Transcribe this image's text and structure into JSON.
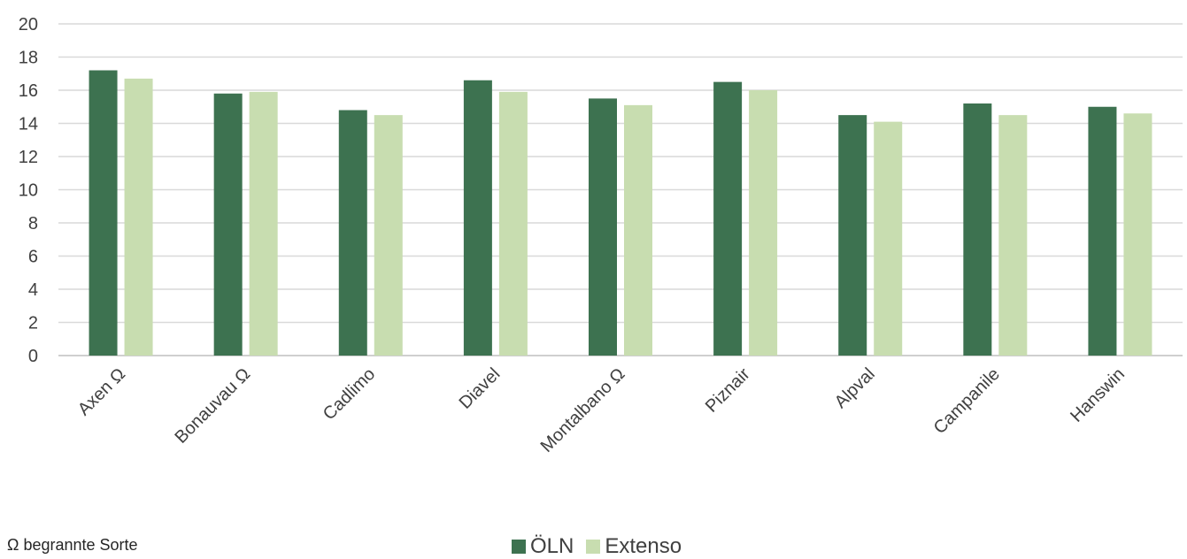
{
  "chart_data": {
    "type": "bar",
    "categories": [
      "Axen Ω",
      "Bonauvau Ω",
      "Cadlimo",
      "Diavel",
      "Montalbano Ω",
      "Piznair",
      "Alpval",
      "Campanile",
      "Hanswin"
    ],
    "series": [
      {
        "name": "ÖLN",
        "color": "#3d7250",
        "values": [
          17.2,
          15.8,
          14.8,
          16.6,
          15.5,
          16.5,
          14.5,
          15.2,
          15.0
        ]
      },
      {
        "name": "Extenso",
        "color": "#c8ddb0",
        "values": [
          16.7,
          15.9,
          14.5,
          15.9,
          15.1,
          16.0,
          14.1,
          14.5,
          14.6
        ]
      }
    ],
    "yticks": [
      "0",
      "2",
      "4",
      "6",
      "8",
      "10",
      "12",
      "14",
      "16",
      "18",
      "20"
    ],
    "ylim": [
      0,
      20
    ],
    "grid": true,
    "legend_position": "bottom",
    "footnote": "Ω begrannte Sorte"
  }
}
